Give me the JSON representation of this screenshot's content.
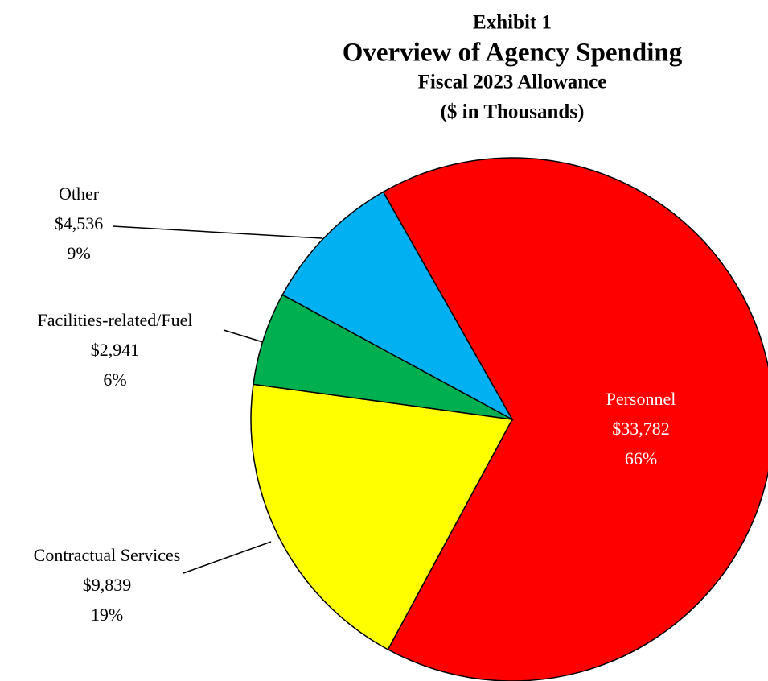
{
  "chart_data": {
    "type": "pie",
    "label": "Exhibit 1",
    "title": "Overview of Agency Spending",
    "subtitle": "Fiscal 2023 Allowance",
    "units": "($ in Thousands)",
    "categories": [
      "Personnel",
      "Contractual Services",
      "Facilities-related/Fuel",
      "Other"
    ],
    "values": [
      33782,
      9839,
      2941,
      4536
    ],
    "value_labels": [
      "$33,782",
      "$9,839",
      "$2,941",
      "$4,536"
    ],
    "percents": [
      66,
      19,
      6,
      9
    ],
    "percent_labels": [
      "66%",
      "19%",
      "6%",
      "9%"
    ],
    "colors": [
      "#ff0000",
      "#ffff00",
      "#00b050",
      "#00b0f0"
    ]
  }
}
